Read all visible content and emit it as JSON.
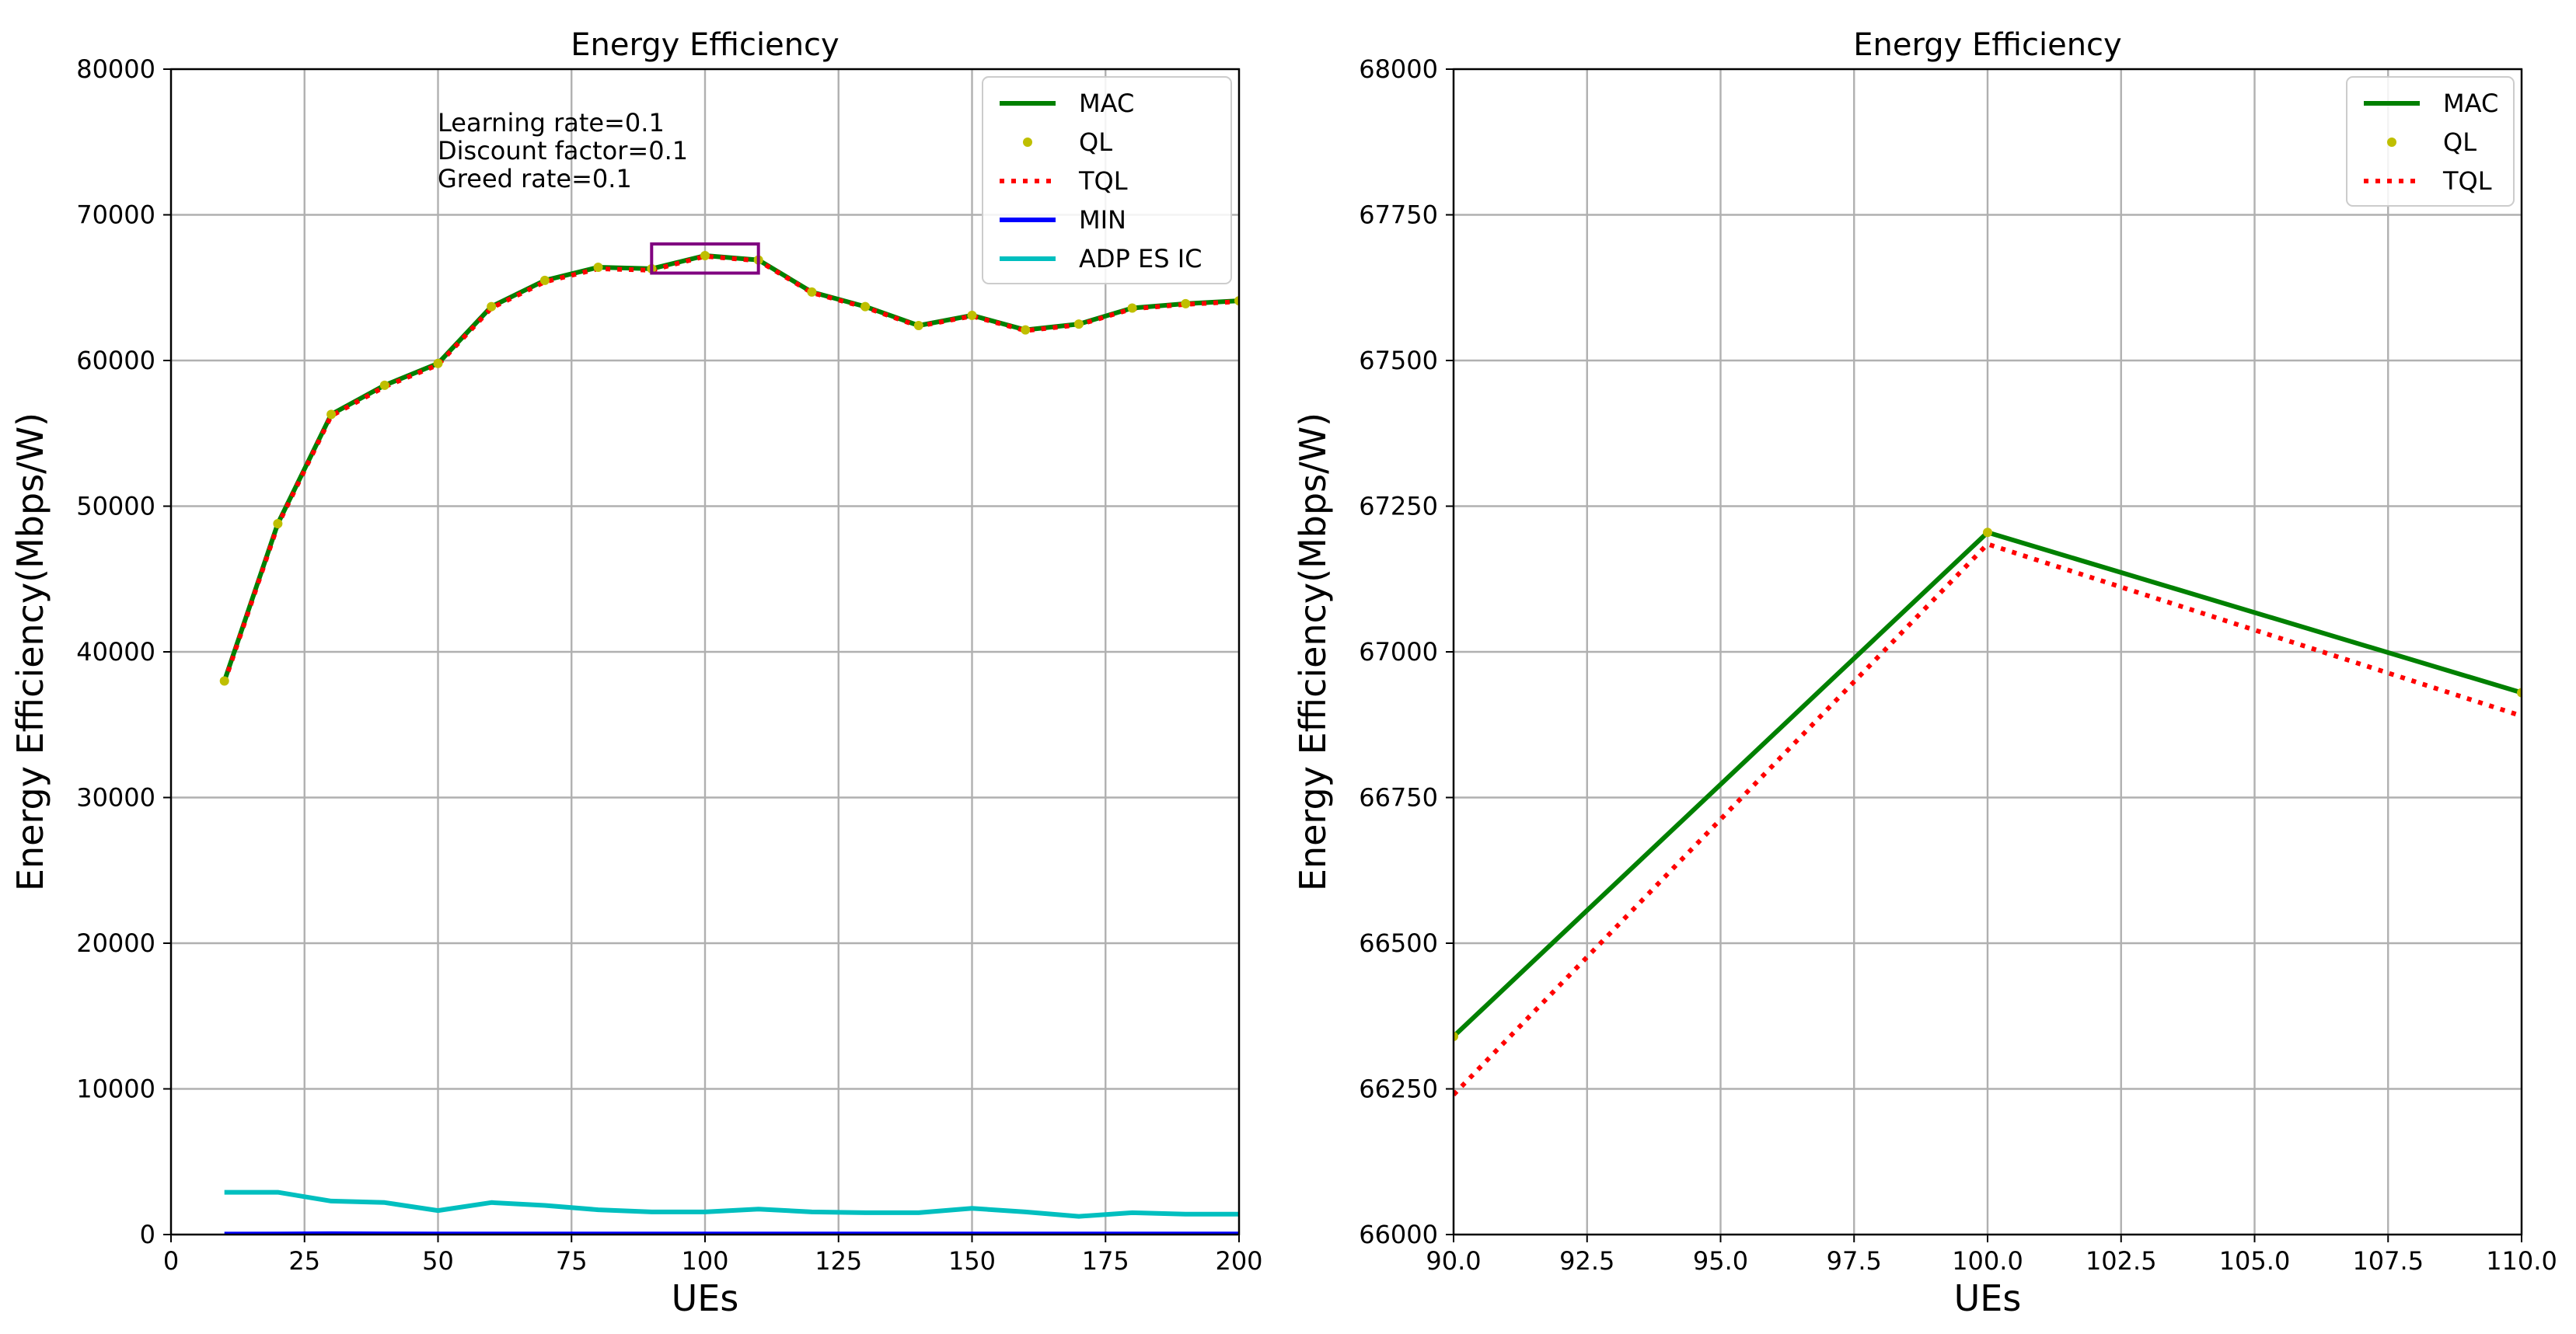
{
  "chart_data": [
    {
      "type": "line",
      "title": "Energy Efficiency",
      "xlabel": "UEs",
      "ylabel": "Energy Efficiency(Mbps/W)",
      "xlim": [
        0,
        200
      ],
      "ylim": [
        0,
        80000
      ],
      "xticks": [
        "0",
        "25",
        "50",
        "75",
        "100",
        "125",
        "150",
        "175",
        "200"
      ],
      "yticks": [
        "0",
        "10000",
        "20000",
        "30000",
        "40000",
        "50000",
        "60000",
        "70000",
        "80000"
      ],
      "grid": true,
      "legend_position": "upper right",
      "annotation": [
        "Learning rate=0.1",
        "Discount factor=0.1",
        "Greed rate=0.1"
      ],
      "zoom_box": {
        "x": [
          90,
          110
        ],
        "y": [
          66000,
          68000
        ],
        "color": "#800080"
      },
      "x": [
        10,
        20,
        30,
        40,
        50,
        60,
        70,
        80,
        90,
        100,
        110,
        120,
        130,
        140,
        150,
        160,
        170,
        180,
        190,
        200
      ],
      "series": [
        {
          "name": "MAC",
          "style": "solid",
          "color": "#008000",
          "values": [
            38000,
            48800,
            56300,
            58300,
            59800,
            63700,
            65500,
            66400,
            66300,
            67200,
            66900,
            64700,
            63700,
            62400,
            63100,
            62100,
            62500,
            63600,
            63900,
            64100
          ]
        },
        {
          "name": "QL",
          "style": "dots",
          "color": "#bfbf00",
          "values": [
            38000,
            48800,
            56300,
            58300,
            59800,
            63700,
            65500,
            66400,
            66300,
            67200,
            66900,
            64700,
            63700,
            62400,
            63100,
            62100,
            62500,
            63600,
            63900,
            64100
          ]
        },
        {
          "name": "TQL",
          "style": "dotted",
          "color": "#ff0000",
          "values": [
            37900,
            48700,
            56200,
            58200,
            59700,
            63600,
            65400,
            66300,
            66200,
            67150,
            66850,
            64650,
            63650,
            62350,
            63050,
            62050,
            62450,
            63550,
            63850,
            64050
          ]
        },
        {
          "name": "MIN",
          "style": "solid",
          "color": "#0000ff",
          "values": [
            30,
            40,
            60,
            50,
            40,
            40,
            40,
            40,
            40,
            40,
            40,
            40,
            40,
            40,
            40,
            40,
            40,
            40,
            40,
            40
          ]
        },
        {
          "name": "ADP ES IC",
          "style": "solid",
          "color": "#00bfbf",
          "values": [
            2900,
            2900,
            2300,
            2200,
            1650,
            2200,
            2000,
            1700,
            1550,
            1550,
            1750,
            1550,
            1500,
            1500,
            1800,
            1550,
            1250,
            1500,
            1400,
            1400
          ]
        }
      ]
    },
    {
      "type": "line",
      "title": "Energy Efficiency",
      "xlabel": "UEs",
      "ylabel": "Energy Efficiency(Mbps/W)",
      "xlim": [
        90,
        110
      ],
      "ylim": [
        66000,
        68000
      ],
      "xticks": [
        "90.0",
        "92.5",
        "95.0",
        "97.5",
        "100.0",
        "102.5",
        "105.0",
        "107.5",
        "110.0"
      ],
      "yticks": [
        "66000",
        "66250",
        "66500",
        "66750",
        "67000",
        "67250",
        "67500",
        "67750",
        "68000"
      ],
      "grid": true,
      "legend_position": "upper right",
      "x": [
        90,
        100,
        110
      ],
      "series": [
        {
          "name": "MAC",
          "style": "solid",
          "color": "#008000",
          "values": [
            66340,
            67205,
            66930
          ]
        },
        {
          "name": "QL",
          "style": "dots",
          "color": "#bfbf00",
          "values": [
            66340,
            67205,
            66930
          ]
        },
        {
          "name": "TQL",
          "style": "dotted",
          "color": "#ff0000",
          "values": [
            66240,
            67185,
            66890
          ]
        }
      ]
    }
  ]
}
